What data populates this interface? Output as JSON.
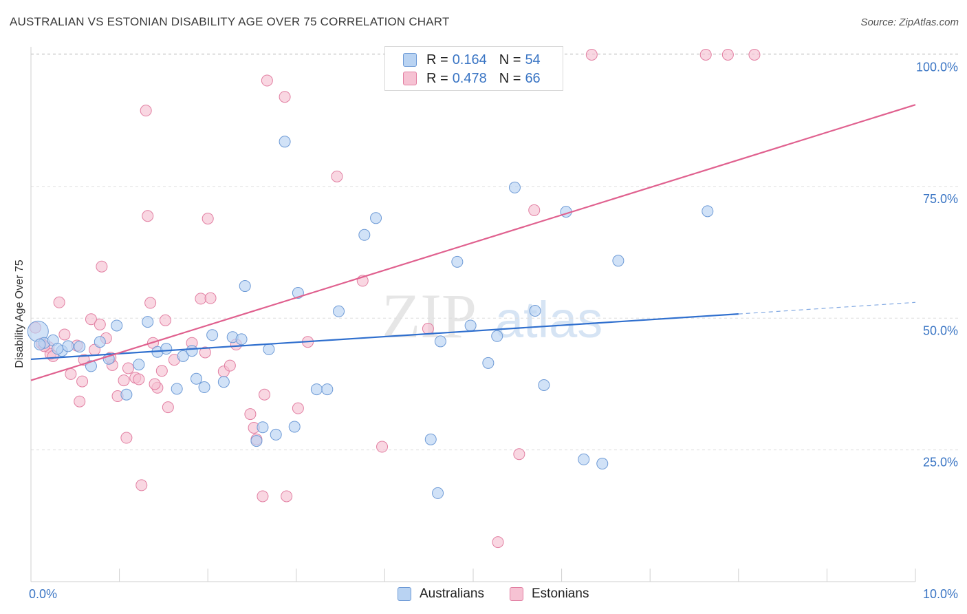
{
  "header": {
    "title": "AUSTRALIAN VS ESTONIAN DISABILITY AGE OVER 75 CORRELATION CHART",
    "source": "Source: ZipAtlas.com"
  },
  "watermark": {
    "zip": "ZIP",
    "atlas": "atlas"
  },
  "colors": {
    "blue_fill": "#b9d3f2",
    "blue_stroke": "#6d9ad6",
    "blue_line": "#2f6fce",
    "pink_fill": "#f6c2d3",
    "pink_stroke": "#e27fa2",
    "pink_line": "#e0618f",
    "axis_label": "#3a75c4",
    "grid": "#dddddd"
  },
  "legend": {
    "rows": [
      {
        "r_label": "R =",
        "r_value": "0.164",
        "n_label": "N =",
        "n_value": "54"
      },
      {
        "r_label": "R =",
        "r_value": "0.478",
        "n_label": "N =",
        "n_value": "66"
      }
    ]
  },
  "bottom_legend": {
    "items": [
      "Australians",
      "Estonians"
    ]
  },
  "chart_data": {
    "type": "scatter",
    "title": "AUSTRALIAN VS ESTONIAN DISABILITY AGE OVER 75 CORRELATION CHART",
    "xlabel": "",
    "ylabel": "Disability Age Over 75",
    "xlim": [
      0,
      10
    ],
    "ylim": [
      0,
      102
    ],
    "x_tick_labels": [
      "0.0%",
      "10.0%"
    ],
    "y_tick_labels": [
      "25.0%",
      "50.0%",
      "75.0%",
      "100.0%"
    ],
    "y_ticks": [
      25,
      50,
      75,
      100
    ],
    "grid": true,
    "series": [
      {
        "name": "Australians",
        "r": 0.164,
        "n": 54,
        "trend": {
          "x0": 0,
          "y0": 42.2,
          "x1": 8.0,
          "y1": 50.8,
          "dash_to_x": 10.0,
          "dash_to_y": 53.0
        },
        "points": [
          [
            0.08,
            47.5
          ],
          [
            0.15,
            45.3
          ],
          [
            0.25,
            45.8
          ],
          [
            0.35,
            43.8
          ],
          [
            0.42,
            44.7
          ],
          [
            0.55,
            44.6
          ],
          [
            0.68,
            40.9
          ],
          [
            0.78,
            45.5
          ],
          [
            0.88,
            42.3
          ],
          [
            0.97,
            48.6
          ],
          [
            1.08,
            35.5
          ],
          [
            1.22,
            41.2
          ],
          [
            1.32,
            49.3
          ],
          [
            1.43,
            43.6
          ],
          [
            1.53,
            44.2
          ],
          [
            1.65,
            36.6
          ],
          [
            1.72,
            42.8
          ],
          [
            1.82,
            43.8
          ],
          [
            1.87,
            38.5
          ],
          [
            1.96,
            36.9
          ],
          [
            2.05,
            46.8
          ],
          [
            2.18,
            37.9
          ],
          [
            2.28,
            46.4
          ],
          [
            2.38,
            46.0
          ],
          [
            2.42,
            56.1
          ],
          [
            2.55,
            26.7
          ],
          [
            2.62,
            29.3
          ],
          [
            2.69,
            44.1
          ],
          [
            2.77,
            27.9
          ],
          [
            2.87,
            83.5
          ],
          [
            2.98,
            29.4
          ],
          [
            3.02,
            54.8
          ],
          [
            3.23,
            36.5
          ],
          [
            3.35,
            36.5
          ],
          [
            3.48,
            51.3
          ],
          [
            3.77,
            65.8
          ],
          [
            3.9,
            69.0
          ],
          [
            4.52,
            27.0
          ],
          [
            4.6,
            16.8
          ],
          [
            4.63,
            45.6
          ],
          [
            4.82,
            60.7
          ],
          [
            4.97,
            48.6
          ],
          [
            5.17,
            41.5
          ],
          [
            5.27,
            46.6
          ],
          [
            5.47,
            74.8
          ],
          [
            5.7,
            51.4
          ],
          [
            5.8,
            37.3
          ],
          [
            6.05,
            70.2
          ],
          [
            6.25,
            23.2
          ],
          [
            6.46,
            22.4
          ],
          [
            6.64,
            60.9
          ],
          [
            7.65,
            70.3
          ],
          [
            0.1,
            45.0
          ],
          [
            0.3,
            44.2
          ]
        ]
      },
      {
        "name": "Estonians",
        "r": 0.478,
        "n": 66,
        "trend": {
          "x0": 0,
          "y0": 38.2,
          "x1": 10.0,
          "y1": 90.5
        },
        "points": [
          [
            0.05,
            48.2
          ],
          [
            0.12,
            45.2
          ],
          [
            0.2,
            44.5
          ],
          [
            0.22,
            43.2
          ],
          [
            0.32,
            53.0
          ],
          [
            0.38,
            46.9
          ],
          [
            0.45,
            39.4
          ],
          [
            0.52,
            44.8
          ],
          [
            0.55,
            34.2
          ],
          [
            0.6,
            42.1
          ],
          [
            0.68,
            49.8
          ],
          [
            0.78,
            48.8
          ],
          [
            0.8,
            59.8
          ],
          [
            0.85,
            46.2
          ],
          [
            0.92,
            41.1
          ],
          [
            0.98,
            35.2
          ],
          [
            1.05,
            38.2
          ],
          [
            1.08,
            27.3
          ],
          [
            1.1,
            40.5
          ],
          [
            1.18,
            38.7
          ],
          [
            1.22,
            38.4
          ],
          [
            1.25,
            18.3
          ],
          [
            1.3,
            89.4
          ],
          [
            1.32,
            69.4
          ],
          [
            1.35,
            52.9
          ],
          [
            1.38,
            45.3
          ],
          [
            1.43,
            36.8
          ],
          [
            1.52,
            49.6
          ],
          [
            1.55,
            33.1
          ],
          [
            1.62,
            42.1
          ],
          [
            1.82,
            45.3
          ],
          [
            1.92,
            53.7
          ],
          [
            1.97,
            43.5
          ],
          [
            2.0,
            68.9
          ],
          [
            2.03,
            53.8
          ],
          [
            2.18,
            39.9
          ],
          [
            2.32,
            45.0
          ],
          [
            2.48,
            31.8
          ],
          [
            2.52,
            29.2
          ],
          [
            2.55,
            27.0
          ],
          [
            2.62,
            16.2
          ],
          [
            2.64,
            35.5
          ],
          [
            2.67,
            95.1
          ],
          [
            2.87,
            92.0
          ],
          [
            2.89,
            16.2
          ],
          [
            3.02,
            32.9
          ],
          [
            3.13,
            45.5
          ],
          [
            3.46,
            76.9
          ],
          [
            3.75,
            57.1
          ],
          [
            3.97,
            25.6
          ],
          [
            4.49,
            48.0
          ],
          [
            5.28,
            7.5
          ],
          [
            5.52,
            24.2
          ],
          [
            5.69,
            70.5
          ],
          [
            6.34,
            100.0
          ],
          [
            7.63,
            100.0
          ],
          [
            7.88,
            100.0
          ],
          [
            8.18,
            100.0
          ],
          [
            0.15,
            44.7
          ],
          [
            0.58,
            38.0
          ],
          [
            0.9,
            42.5
          ],
          [
            1.48,
            40.0
          ],
          [
            2.25,
            41.0
          ],
          [
            0.25,
            42.8
          ],
          [
            0.72,
            44.0
          ],
          [
            1.4,
            37.5
          ]
        ]
      }
    ]
  }
}
